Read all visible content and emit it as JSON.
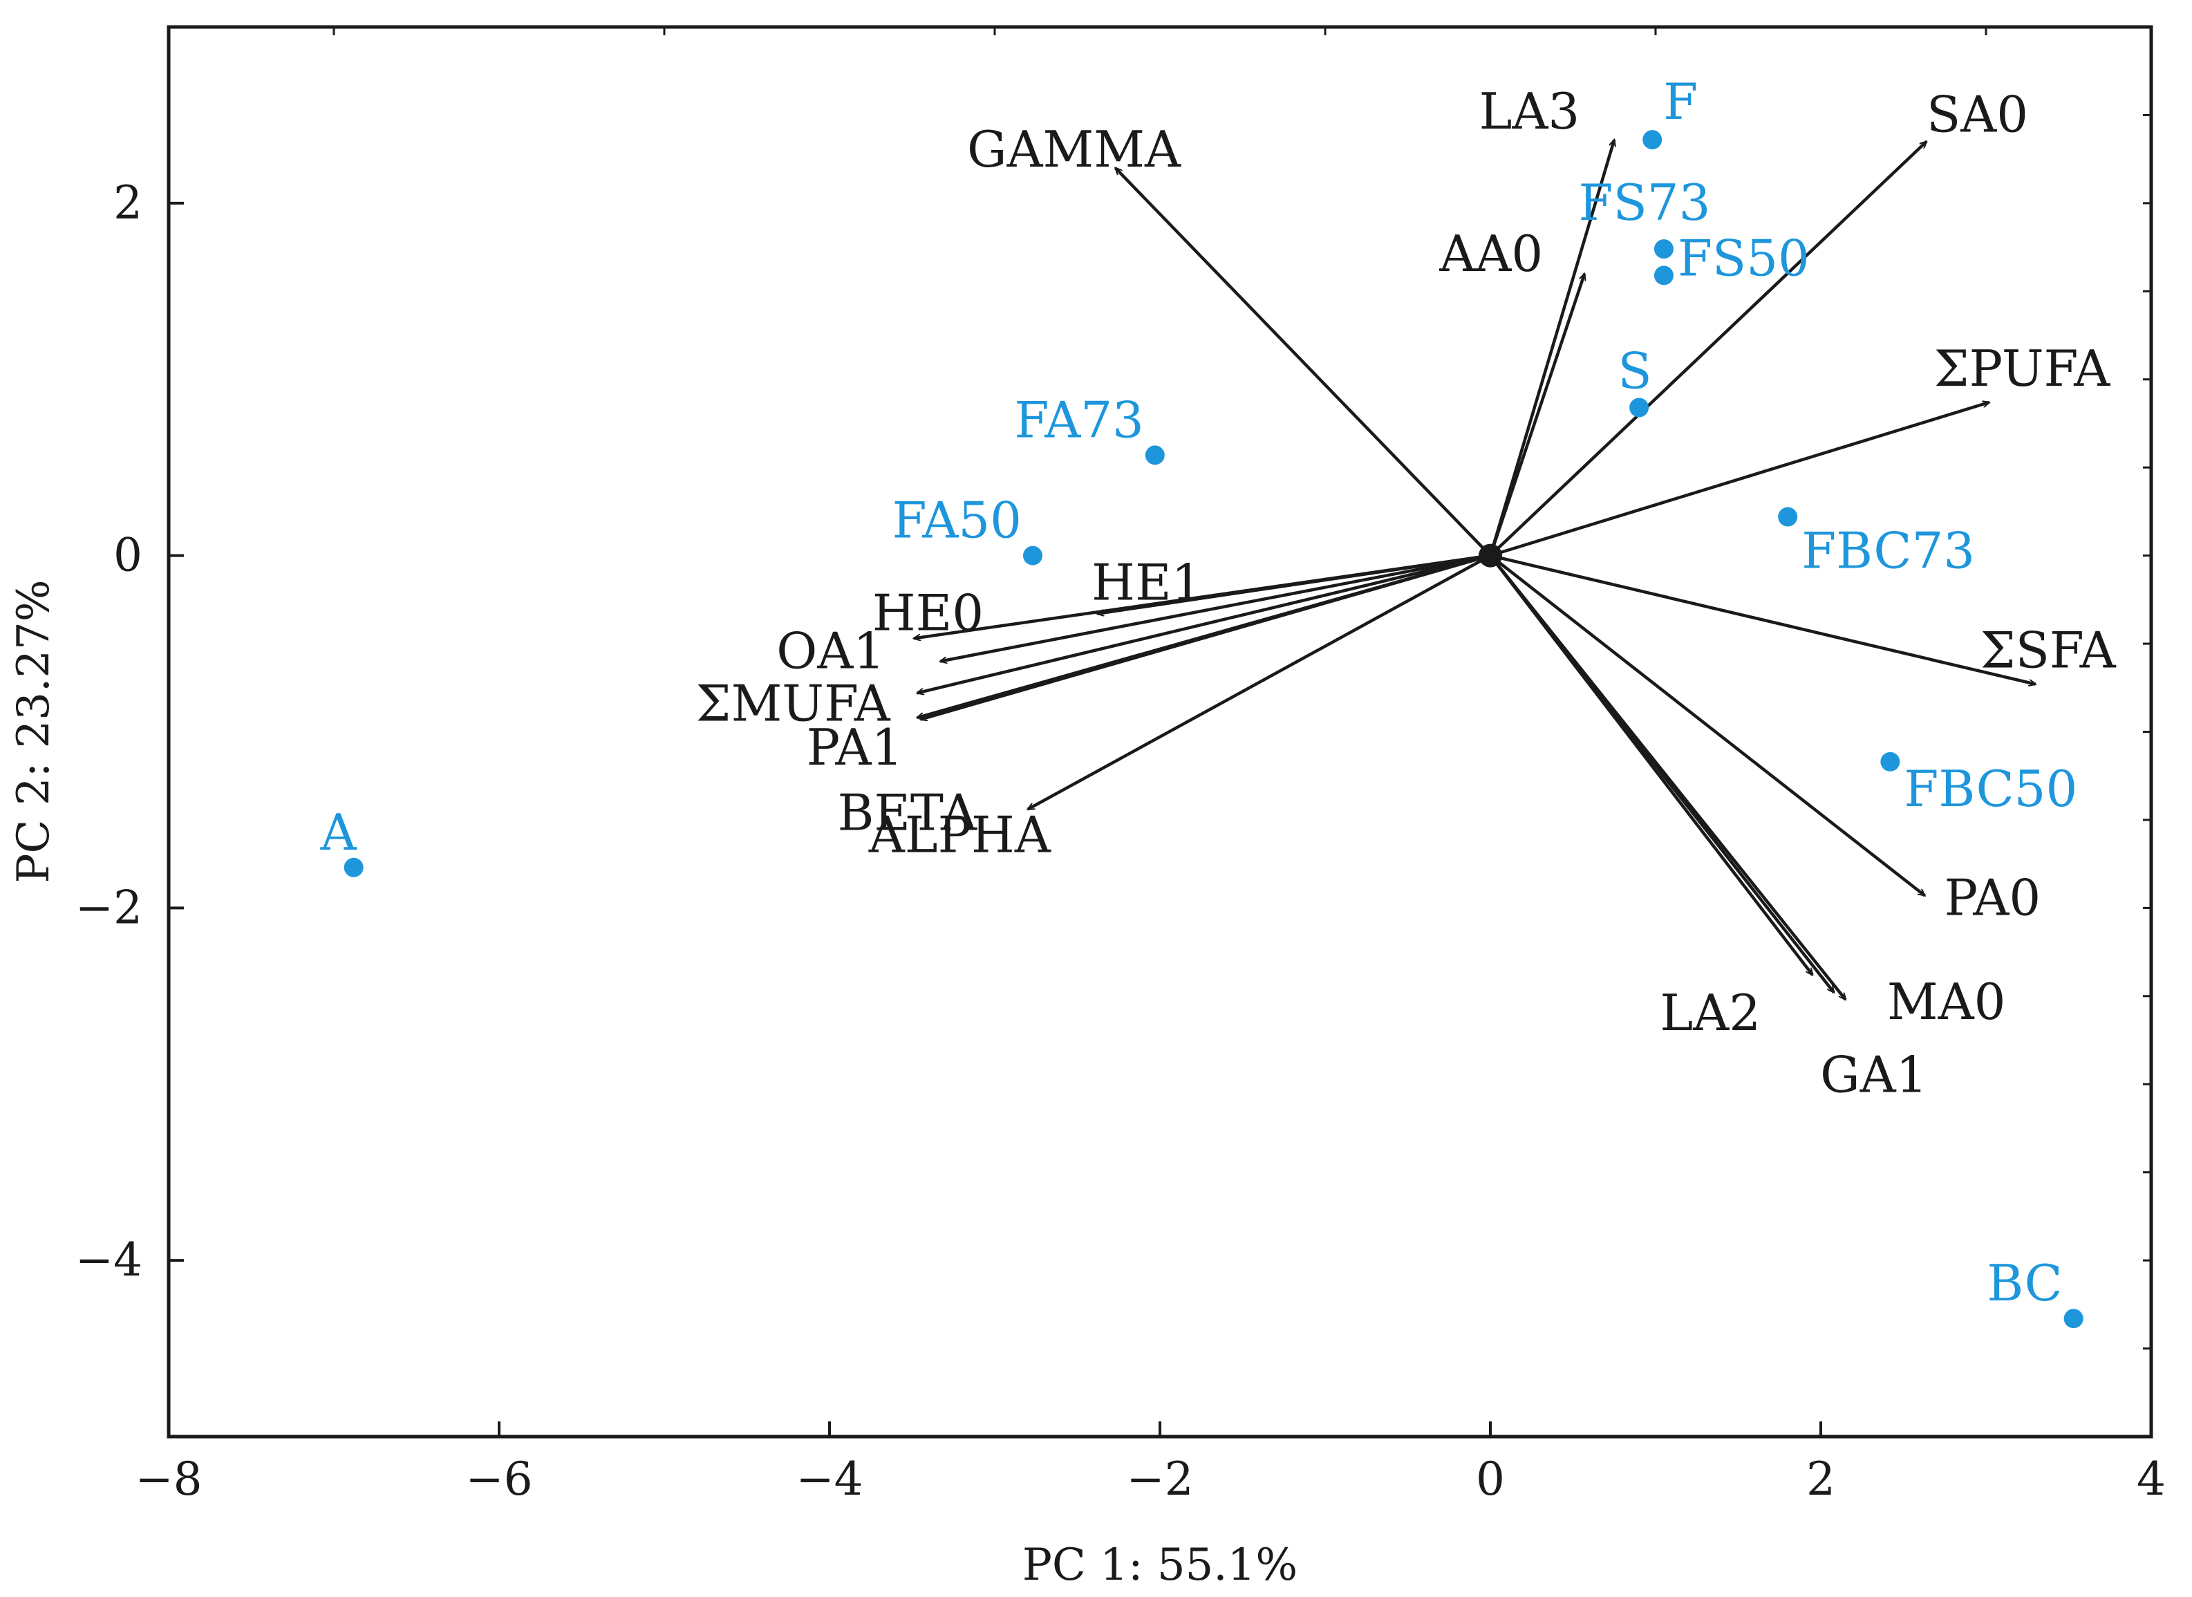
{
  "chart_data": {
    "type": "scatter",
    "subtype": "pca-biplot",
    "title": "",
    "xlabel": "PC 1: 55.1%",
    "ylabel": "PC 2: 23.27%",
    "xlim": [
      -8,
      4
    ],
    "ylim": [
      -5,
      3
    ],
    "xticks": [
      -8,
      -6,
      -4,
      -2,
      0,
      2,
      4
    ],
    "yticks": [
      -4,
      -2,
      0,
      2
    ],
    "xtick_labels": [
      "−8",
      "−6",
      "−4",
      "−2",
      "0",
      "2",
      "4"
    ],
    "ytick_labels": [
      "−4",
      "−2",
      "0",
      "2"
    ],
    "grid": false,
    "colors": {
      "observations": "#1e96dc",
      "loadings": "#1a1a1a"
    },
    "observations": [
      {
        "label": "A",
        "x": -6.88,
        "y": -1.77,
        "label_pos": "left"
      },
      {
        "label": "FA50",
        "x": -2.77,
        "y": 0.0,
        "label_pos": "left"
      },
      {
        "label": "FA73",
        "x": -2.03,
        "y": 0.57,
        "label_pos": "left"
      },
      {
        "label": "F",
        "x": 0.98,
        "y": 2.36,
        "label_pos": "right"
      },
      {
        "label": "FS73",
        "x": 1.05,
        "y": 1.74,
        "label_pos": "above"
      },
      {
        "label": "FS50",
        "x": 1.05,
        "y": 1.59,
        "label_pos": "right"
      },
      {
        "label": "S",
        "x": 0.9,
        "y": 0.84,
        "label_pos": "left"
      },
      {
        "label": "FBC73",
        "x": 1.8,
        "y": 0.22,
        "label_pos": "below"
      },
      {
        "label": "FBC50",
        "x": 2.42,
        "y": -1.17,
        "label_pos": "below"
      },
      {
        "label": "BC",
        "x": 3.53,
        "y": -4.33,
        "label_pos": "left"
      }
    ],
    "loadings": [
      {
        "label": "GAMMA",
        "x": -2.27,
        "y": 2.2
      },
      {
        "label": "LA3",
        "x": 0.75,
        "y": 2.36
      },
      {
        "label": "AA0",
        "x": 0.57,
        "y": 1.6
      },
      {
        "label": "SA0",
        "x": 2.64,
        "y": 2.35
      },
      {
        "label": "ΣPUFA",
        "x": 3.02,
        "y": 0.87
      },
      {
        "label": "ΣSFA",
        "x": 3.3,
        "y": -0.73
      },
      {
        "label": "PA0",
        "x": 2.63,
        "y": -1.93
      },
      {
        "label": "MA0",
        "x": 2.15,
        "y": -2.52
      },
      {
        "label": "GA1",
        "x": 2.08,
        "y": -2.48
      },
      {
        "label": "LA2",
        "x": 1.95,
        "y": -2.38
      },
      {
        "label": "HE1",
        "x": -2.38,
        "y": -0.33
      },
      {
        "label": "HE0",
        "x": -3.49,
        "y": -0.47
      },
      {
        "label": "OA1",
        "x": -3.33,
        "y": -0.6
      },
      {
        "label": "ΣMUFA",
        "x": -3.47,
        "y": -0.78
      },
      {
        "label": "PA1",
        "x": -3.47,
        "y": -0.92
      },
      {
        "label": "BETA",
        "x": -3.45,
        "y": -0.93
      },
      {
        "label": "ALPHA",
        "x": -2.8,
        "y": -1.44
      }
    ]
  }
}
